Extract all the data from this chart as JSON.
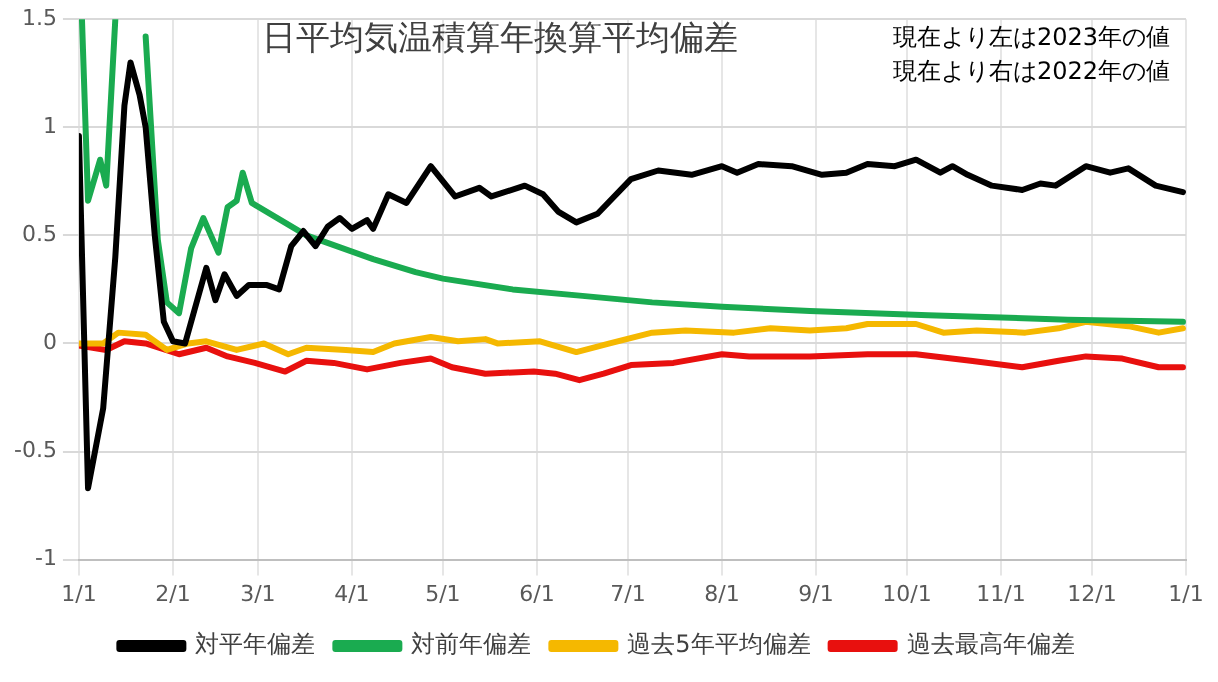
{
  "chart_data": {
    "type": "line",
    "title": "日平均気温積算年換算平均偏差",
    "annotations": [
      "現在より左は2023年の値",
      "現在より右は2022年の値"
    ],
    "xlim": [
      "2023-01-01",
      "2024-01-01"
    ],
    "xticks": [
      {
        "value": "2023-01-01",
        "label": "1/1"
      },
      {
        "value": "2023-02-01",
        "label": "2/1"
      },
      {
        "value": "2023-03-01",
        "label": "3/1"
      },
      {
        "value": "2023-04-01",
        "label": "4/1"
      },
      {
        "value": "2023-05-01",
        "label": "5/1"
      },
      {
        "value": "2023-06-01",
        "label": "6/1"
      },
      {
        "value": "2023-07-01",
        "label": "7/1"
      },
      {
        "value": "2023-08-01",
        "label": "8/1"
      },
      {
        "value": "2023-09-01",
        "label": "9/1"
      },
      {
        "value": "2023-10-01",
        "label": "10/1"
      },
      {
        "value": "2023-11-01",
        "label": "11/1"
      },
      {
        "value": "2023-12-01",
        "label": "12/1"
      },
      {
        "value": "2024-01-01",
        "label": "1/1"
      }
    ],
    "ylim": [
      -1,
      1.5
    ],
    "yticks": [
      -1,
      -0.5,
      0,
      0.5,
      1,
      1.5
    ],
    "grid": true,
    "legend": "bottom",
    "marker": "none",
    "line_style": "solid",
    "series": [
      {
        "name": "対平年偏差",
        "color": "#000000",
        "x": [
          "2023-01-01",
          "2023-01-04",
          "2023-01-09",
          "2023-01-13",
          "2023-01-16",
          "2023-01-18",
          "2023-01-21",
          "2023-01-23",
          "2023-01-26",
          "2023-01-29",
          "2023-02-01",
          "2023-02-05",
          "2023-02-08",
          "2023-02-12",
          "2023-02-15",
          "2023-02-18",
          "2023-02-22",
          "2023-02-26",
          "2023-03-04",
          "2023-03-08",
          "2023-03-12",
          "2023-03-16",
          "2023-03-20",
          "2023-03-24",
          "2023-03-28",
          "2023-04-01",
          "2023-04-06",
          "2023-04-08",
          "2023-04-13",
          "2023-04-19",
          "2023-04-27",
          "2023-05-05",
          "2023-05-13",
          "2023-05-17",
          "2023-05-28",
          "2023-06-03",
          "2023-06-08",
          "2023-06-14",
          "2023-06-21",
          "2023-07-02",
          "2023-07-11",
          "2023-07-22",
          "2023-08-01",
          "2023-08-06",
          "2023-08-13",
          "2023-08-24",
          "2023-09-03",
          "2023-09-11",
          "2023-09-18",
          "2023-09-27",
          "2023-10-04",
          "2023-10-12",
          "2023-10-16",
          "2023-10-21",
          "2023-10-29",
          "2023-11-08",
          "2023-11-14",
          "2023-11-19",
          "2023-11-29",
          "2023-12-07",
          "2023-12-13",
          "2023-12-22",
          "2023-12-31"
        ],
        "values": [
          0.96,
          -0.67,
          -0.3,
          0.4,
          1.1,
          1.3,
          1.15,
          1.0,
          0.5,
          0.1,
          0.01,
          0.0,
          0.15,
          0.35,
          0.2,
          0.32,
          0.22,
          0.27,
          0.27,
          0.25,
          0.45,
          0.52,
          0.45,
          0.54,
          0.58,
          0.53,
          0.57,
          0.53,
          0.69,
          0.65,
          0.82,
          0.68,
          0.72,
          0.68,
          0.73,
          0.69,
          0.61,
          0.56,
          0.6,
          0.76,
          0.8,
          0.78,
          0.82,
          0.79,
          0.83,
          0.82,
          0.78,
          0.79,
          0.83,
          0.82,
          0.85,
          0.79,
          0.82,
          0.78,
          0.73,
          0.71,
          0.74,
          0.73,
          0.82,
          0.79,
          0.81,
          0.73,
          0.7
        ]
      },
      {
        "name": "対前年偏差",
        "color": "#1aab50",
        "x": [
          "2023-01-02",
          "2023-01-04",
          "2023-01-08",
          "2023-01-10",
          "2023-01-13",
          "2023-01-22",
          "2023-01-23",
          "2023-01-27",
          "2023-01-30",
          "2023-02-03",
          "2023-02-07",
          "2023-02-11",
          "2023-02-16",
          "2023-02-19",
          "2023-02-22",
          "2023-02-24",
          "2023-02-27",
          "2023-03-17",
          "2023-04-08",
          "2023-04-22",
          "2023-05-01",
          "2023-05-24",
          "2023-06-16",
          "2023-07-09",
          "2023-08-01",
          "2023-08-30",
          "2023-10-08",
          "2023-11-23",
          "2023-12-31"
        ],
        "values": [
          1.5,
          0.66,
          0.85,
          0.73,
          1.5,
          null,
          1.42,
          0.48,
          0.19,
          0.14,
          0.44,
          0.58,
          0.42,
          0.63,
          0.66,
          0.79,
          0.65,
          0.5,
          0.39,
          0.33,
          0.3,
          0.25,
          0.22,
          0.19,
          0.17,
          0.15,
          0.13,
          0.11,
          0.1
        ]
      },
      {
        "name": "過去5年平均偏差",
        "color": "#f5b800",
        "x": [
          "2023-01-01",
          "2023-01-09",
          "2023-01-14",
          "2023-01-23",
          "2023-01-30",
          "2023-02-06",
          "2023-02-12",
          "2023-02-22",
          "2023-03-03",
          "2023-03-11",
          "2023-03-17",
          "2023-03-30",
          "2023-04-08",
          "2023-04-15",
          "2023-04-27",
          "2023-05-06",
          "2023-05-15",
          "2023-05-19",
          "2023-06-02",
          "2023-06-14",
          "2023-06-25",
          "2023-07-09",
          "2023-07-20",
          "2023-08-05",
          "2023-08-17",
          "2023-08-30",
          "2023-09-11",
          "2023-09-18",
          "2023-10-04",
          "2023-10-13",
          "2023-10-24",
          "2023-11-09",
          "2023-11-20",
          "2023-11-29",
          "2023-12-13",
          "2023-12-23",
          "2023-12-31"
        ],
        "values": [
          0,
          0,
          0.05,
          0.04,
          -0.03,
          0,
          0.01,
          -0.03,
          0,
          -0.05,
          -0.02,
          -0.03,
          -0.04,
          0,
          0.03,
          0.01,
          0.02,
          0,
          0.01,
          -0.04,
          0,
          0.05,
          0.06,
          0.05,
          0.07,
          0.06,
          0.07,
          0.09,
          0.09,
          0.05,
          0.06,
          0.05,
          0.07,
          0.1,
          0.08,
          0.05,
          0.07
        ]
      },
      {
        "name": "過去最高年偏差",
        "color": "#e8100e",
        "x": [
          "2023-01-01",
          "2023-01-10",
          "2023-01-16",
          "2023-01-23",
          "2023-02-03",
          "2023-02-12",
          "2023-02-19",
          "2023-02-28",
          "2023-03-10",
          "2023-03-17",
          "2023-03-26",
          "2023-04-06",
          "2023-04-17",
          "2023-04-27",
          "2023-05-04",
          "2023-05-15",
          "2023-05-31",
          "2023-06-07",
          "2023-06-15",
          "2023-06-23",
          "2023-07-02",
          "2023-07-16",
          "2023-08-01",
          "2023-08-10",
          "2023-08-30",
          "2023-09-18",
          "2023-10-04",
          "2023-10-22",
          "2023-11-08",
          "2023-11-20",
          "2023-11-29",
          "2023-12-11",
          "2023-12-23",
          "2023-12-31"
        ],
        "values": [
          -0.01,
          -0.03,
          0.01,
          0,
          -0.05,
          -0.02,
          -0.06,
          -0.09,
          -0.13,
          -0.08,
          -0.09,
          -0.12,
          -0.09,
          -0.07,
          -0.11,
          -0.14,
          -0.13,
          -0.14,
          -0.17,
          -0.14,
          -0.1,
          -0.09,
          -0.05,
          -0.06,
          -0.06,
          -0.05,
          -0.05,
          -0.08,
          -0.11,
          -0.08,
          -0.06,
          -0.07,
          -0.11,
          -0.11
        ]
      }
    ]
  }
}
